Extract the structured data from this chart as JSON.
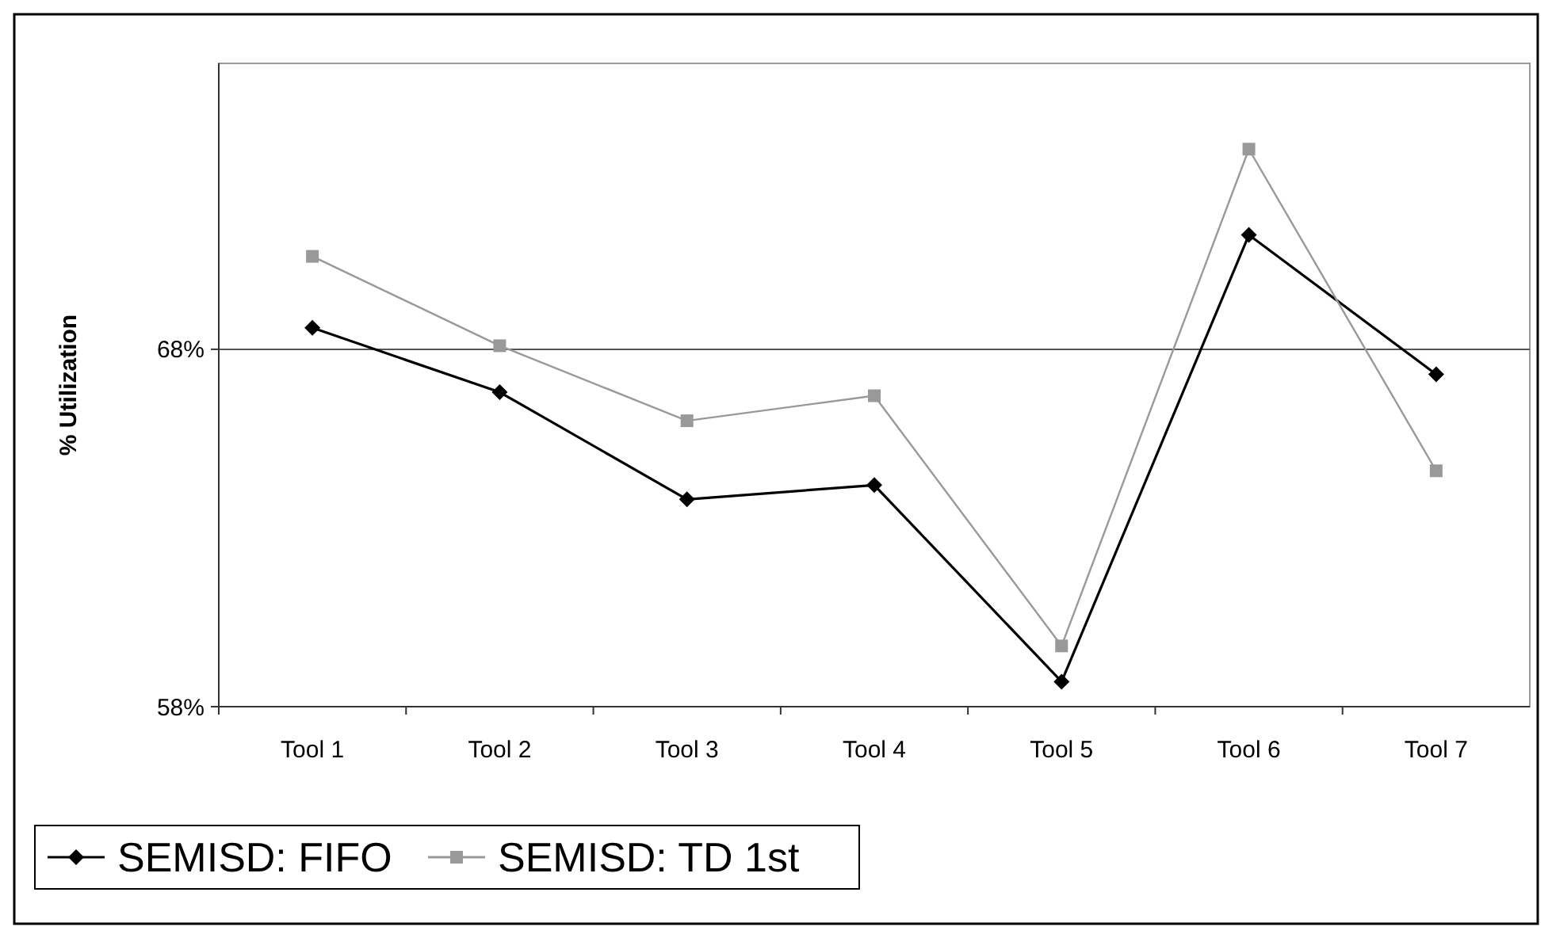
{
  "chart_data": {
    "type": "line",
    "ylabel": "% Utilization",
    "categories": [
      "Tool 1",
      "Tool 2",
      "Tool 3",
      "Tool 4",
      "Tool 5",
      "Tool 6",
      "Tool 7"
    ],
    "series": [
      {
        "name": "SEMISD: FIFO",
        "color": "#000000",
        "marker": "diamond",
        "values": [
          68.6,
          66.8,
          63.8,
          64.2,
          58.7,
          71.2,
          67.3
        ]
      },
      {
        "name": "SEMISD: TD 1st",
        "color": "#999999",
        "marker": "square",
        "values": [
          70.6,
          68.1,
          66.0,
          66.7,
          59.7,
          73.6,
          64.6
        ]
      }
    ],
    "ylim": [
      58,
      76
    ],
    "yticks": [
      {
        "value": 58,
        "label": "58%"
      },
      {
        "value": 68,
        "label": "68%"
      }
    ],
    "grid": "y",
    "legend": "bottom left"
  }
}
